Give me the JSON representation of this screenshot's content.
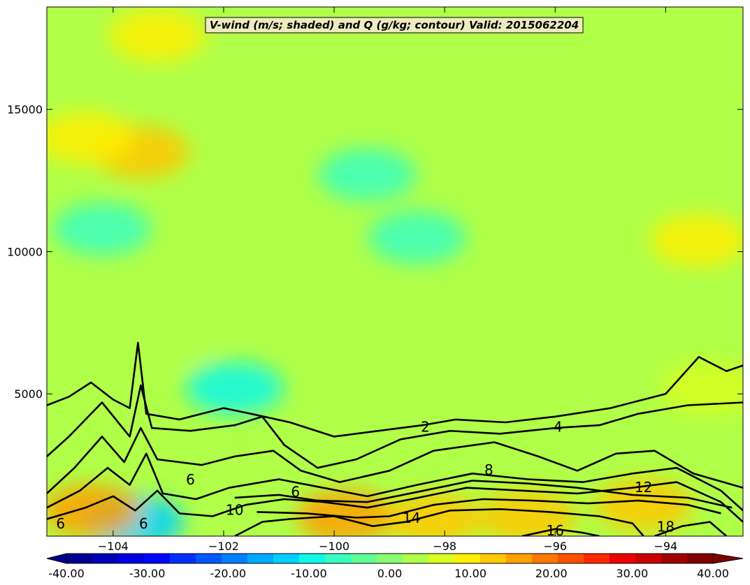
{
  "chart_data": {
    "type": "heatmap",
    "title": "V-wind (m/s; shaded) and Q (g/kg; contour) Valid: 2015062204",
    "xlabel": "",
    "ylabel": "",
    "xlim": [
      -105.2,
      -92.6
    ],
    "ylim": [
      0,
      18600
    ],
    "x_ticks": [
      -104,
      -102,
      -100,
      -98,
      -96,
      -94
    ],
    "y_ticks": [
      5000,
      10000,
      15000
    ],
    "grid": false,
    "colorbar": {
      "orientation": "horizontal",
      "placement": "bottom",
      "range": [
        -40,
        40
      ],
      "extend": "both",
      "ticks": [
        "-40.00",
        "-30.00",
        "-20.00",
        "-10.00",
        "0.00",
        "10.00",
        "20.00",
        "30.00",
        "40.00"
      ],
      "colors": [
        "#00008f",
        "#0000b8",
        "#0000e0",
        "#0008ff",
        "#0030ff",
        "#0058ff",
        "#0080ff",
        "#00a8ff",
        "#00d0ff",
        "#10f8e6",
        "#38ffbf",
        "#60ff96",
        "#88ff6f",
        "#b0ff48",
        "#d8ff20",
        "#ffef00",
        "#ffc800",
        "#ffa000",
        "#ff7800",
        "#ff5000",
        "#ff2800",
        "#ef0000",
        "#c80000",
        "#a00000",
        "#800000"
      ]
    },
    "shading": {
      "variable": "V-wind",
      "units": "m/s",
      "background_value": 2,
      "features": [
        {
          "x": -103.5,
          "y": 13500,
          "value": 12
        },
        {
          "x": -104.5,
          "y": 14000,
          "value": 10
        },
        {
          "x": -104.2,
          "y": 10800,
          "value": -8
        },
        {
          "x": -99.4,
          "y": 12700,
          "value": -8
        },
        {
          "x": -98.5,
          "y": 10500,
          "value": -5
        },
        {
          "x": -93.4,
          "y": 10400,
          "value": 11
        },
        {
          "x": -103.2,
          "y": 17600,
          "value": 8
        },
        {
          "x": -101.8,
          "y": 5200,
          "value": -9
        },
        {
          "x": -103.6,
          "y": 500,
          "value": -12
        },
        {
          "x": -104.4,
          "y": 900,
          "value": 17
        },
        {
          "x": -99.8,
          "y": 700,
          "value": 15
        },
        {
          "x": -98.2,
          "y": 600,
          "value": 14
        },
        {
          "x": -96.5,
          "y": 700,
          "value": 12
        },
        {
          "x": -94.4,
          "y": 1100,
          "value": 13
        },
        {
          "x": -103.0,
          "y": 7000,
          "value": 3
        },
        {
          "x": -93.2,
          "y": 5200,
          "value": 7
        }
      ]
    },
    "contours": {
      "variable": "Q",
      "units": "g/kg",
      "levels": [
        2,
        4,
        6,
        8,
        10,
        12,
        14,
        16,
        18
      ],
      "labels": [
        {
          "text": "2",
          "x": -98.35,
          "y": 3800
        },
        {
          "text": "4",
          "x": -95.95,
          "y": 3800
        },
        {
          "text": "6",
          "x": -100.7,
          "y": 1520
        },
        {
          "text": "8",
          "x": -97.2,
          "y": 2300
        },
        {
          "text": "10",
          "x": -101.8,
          "y": 880
        },
        {
          "text": "12",
          "x": -94.4,
          "y": 1680
        },
        {
          "text": "14",
          "x": -98.6,
          "y": 600
        },
        {
          "text": "16",
          "x": -96.0,
          "y": 160
        },
        {
          "text": "18",
          "x": -94.0,
          "y": 300
        },
        {
          "text": "6",
          "x": -102.6,
          "y": 1950
        },
        {
          "text": "6",
          "x": -103.45,
          "y": 400
        },
        {
          "text": "6",
          "x": -104.95,
          "y": 400
        }
      ]
    }
  }
}
